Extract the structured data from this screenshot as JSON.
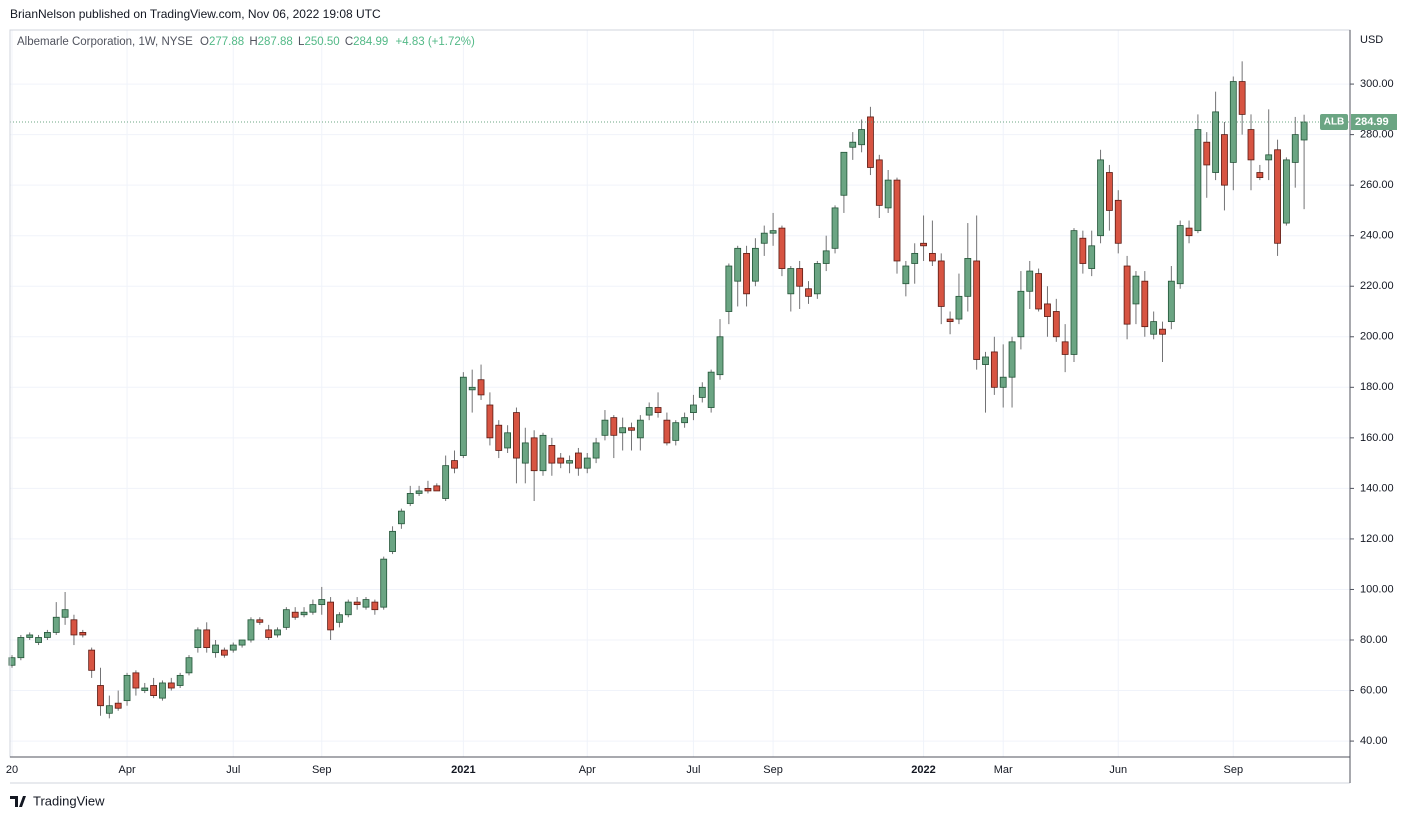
{
  "header": {
    "published": "BrianNelson published on TradingView.com, Nov 06, 2022 19:08 UTC",
    "footer": "TradingView"
  },
  "chart_data": {
    "type": "candlestick",
    "symbol": "Albemarle Corporation, 1W, NYSE",
    "legend_labels": [
      "O",
      "H",
      "L",
      "C"
    ],
    "legend_values": [
      "277.88",
      "287.88",
      "250.50",
      "284.99"
    ],
    "change": "+4.83 (+1.72%)",
    "ticker": "ALB",
    "currency": "USD",
    "up_color": "#6ba583",
    "down_color": "#d75442",
    "grid": true,
    "categories": [
      "20",
      null,
      null,
      null,
      null,
      null,
      null,
      null,
      null,
      null,
      null,
      null,
      null,
      "Apr",
      null,
      null,
      null,
      null,
      null,
      null,
      null,
      null,
      null,
      null,
      null,
      "Jul",
      null,
      null,
      null,
      null,
      null,
      null,
      null,
      null,
      null,
      "Sep",
      null,
      null,
      null,
      null,
      null,
      null,
      null,
      null,
      null,
      null,
      null,
      null,
      null,
      null,
      null,
      "2021",
      null,
      null,
      null,
      null,
      null,
      null,
      null,
      null,
      null,
      null,
      null,
      null,
      null,
      "Apr",
      null,
      null,
      null,
      null,
      null,
      null,
      null,
      null,
      null,
      null,
      null,
      "Jul",
      null,
      null,
      null,
      null,
      null,
      null,
      null,
      null,
      "Sep",
      null,
      null,
      null,
      null,
      null,
      null,
      null,
      null,
      null,
      null,
      null,
      null,
      null,
      null,
      null,
      null,
      "2022",
      null,
      null,
      null,
      null,
      null,
      null,
      null,
      null,
      "Mar",
      null,
      null,
      null,
      null,
      null,
      null,
      null,
      null,
      null,
      null,
      null,
      null,
      "Jun",
      null,
      null,
      null,
      null,
      null,
      null,
      null,
      null,
      null,
      null,
      null,
      null,
      "Sep",
      null,
      null,
      null,
      null,
      null,
      null,
      null,
      null
    ],
    "open": [
      70,
      73,
      81,
      79,
      81,
      83,
      89,
      88,
      83,
      76,
      62,
      51,
      55,
      56,
      67,
      60,
      62,
      57,
      63,
      62,
      67,
      77,
      84,
      75,
      76,
      76,
      78,
      80,
      88,
      84,
      82,
      85,
      91,
      90,
      91,
      94,
      95,
      87,
      90,
      95,
      93,
      95,
      93,
      115,
      126,
      134,
      138,
      140,
      141,
      136,
      151,
      153,
      179,
      183,
      173,
      165,
      156,
      170,
      150,
      160,
      147,
      157,
      152,
      150,
      154,
      148,
      152,
      161,
      168,
      162,
      164,
      160,
      169,
      172,
      167,
      159,
      166,
      170,
      176,
      172,
      185,
      210,
      222,
      233,
      222,
      237,
      241,
      243,
      217,
      227,
      219,
      217,
      229,
      235,
      256,
      275,
      276,
      287,
      270,
      251,
      262,
      221,
      229,
      237,
      233,
      230,
      207,
      207,
      216,
      230,
      189,
      194,
      180,
      184,
      200,
      218,
      225,
      213,
      210,
      198,
      193,
      239,
      227,
      240,
      265,
      254,
      228,
      213,
      222,
      201,
      203,
      206,
      221,
      243,
      242,
      277,
      265,
      280,
      269,
      301,
      282,
      265,
      270,
      274,
      245,
      269,
      277.88
    ],
    "high": [
      74,
      82,
      83,
      82,
      84,
      95,
      99,
      90,
      84,
      77,
      69,
      58,
      60,
      67,
      68,
      63,
      65,
      64,
      65,
      67,
      74,
      85,
      87,
      80,
      77,
      79,
      80,
      89,
      89,
      86,
      85,
      93,
      93,
      93,
      96,
      101,
      97,
      91,
      96,
      97,
      97,
      96,
      113,
      125,
      132,
      141,
      141,
      143,
      142,
      153,
      155,
      186,
      187,
      189,
      178,
      167,
      165,
      172,
      164,
      163,
      162,
      160,
      154,
      153,
      156,
      154,
      160,
      171,
      169,
      168,
      166,
      169,
      174,
      178,
      170,
      167,
      170,
      177,
      182,
      187,
      207,
      229,
      236,
      236,
      239,
      244,
      249,
      244,
      228,
      230,
      222,
      230,
      240,
      252,
      273,
      281,
      286,
      291,
      272,
      266,
      263,
      230,
      237,
      248,
      246,
      233,
      210,
      225,
      245,
      248,
      194,
      200,
      197,
      200,
      226,
      230,
      227,
      220,
      215,
      205,
      243,
      242,
      242,
      274,
      268,
      258,
      232,
      226,
      226,
      210,
      206,
      228,
      246,
      246,
      288,
      281,
      297,
      285,
      303,
      309,
      288,
      268,
      290,
      278,
      271,
      287,
      287.88
    ],
    "low": [
      69,
      72,
      80,
      78,
      80,
      82,
      86,
      78,
      81,
      65,
      50,
      49,
      52,
      54,
      58,
      59,
      57,
      56,
      60,
      61,
      66,
      75,
      75,
      73,
      73,
      75,
      77,
      79,
      86,
      80,
      81,
      84,
      88,
      89,
      90,
      90,
      80,
      85,
      89,
      92,
      92,
      90,
      92,
      114,
      124,
      133,
      137,
      138,
      139,
      135,
      146,
      152,
      170,
      175,
      157,
      152,
      154,
      142,
      142,
      135,
      145,
      145,
      148,
      146,
      145,
      146,
      150,
      159,
      152,
      155,
      155,
      155,
      167,
      168,
      157,
      157,
      164,
      167,
      174,
      170,
      183,
      205,
      212,
      212,
      220,
      232,
      236,
      224,
      210,
      211,
      213,
      215,
      226,
      233,
      249,
      270,
      273,
      264,
      247,
      249,
      225,
      216,
      221,
      230,
      228,
      205,
      201,
      205,
      210,
      187,
      170,
      177,
      172,
      172,
      195,
      211,
      210,
      200,
      198,
      186,
      190,
      225,
      224,
      237,
      242,
      233,
      199,
      205,
      200,
      199,
      190,
      203,
      219,
      237,
      241,
      255,
      262,
      250,
      258,
      280,
      258,
      262,
      262,
      232,
      244,
      259,
      250.5
    ],
    "close": [
      73,
      81,
      82,
      81,
      83,
      89,
      92,
      82,
      82,
      68,
      54,
      54,
      53,
      66,
      61,
      61,
      58,
      63,
      61,
      66,
      73,
      84,
      77,
      78,
      74,
      78,
      80,
      88,
      87,
      81,
      84,
      92,
      89,
      91,
      94,
      96,
      84,
      90,
      95,
      94,
      96,
      92,
      112,
      123,
      131,
      138,
      139,
      139,
      139,
      149,
      148,
      184,
      180,
      177,
      160,
      155,
      162,
      152,
      158,
      147,
      161,
      150,
      150,
      151,
      148,
      152,
      158,
      167,
      161,
      164,
      163,
      167,
      172,
      170,
      158,
      166,
      168,
      173,
      180,
      186,
      200,
      228,
      235,
      217,
      235,
      241,
      242,
      227,
      227,
      220,
      216,
      229,
      234,
      251,
      273,
      277,
      282,
      267,
      252,
      262,
      230,
      228,
      233,
      236,
      230,
      212,
      206,
      216,
      231,
      191,
      192,
      180,
      184,
      198,
      218,
      226,
      211,
      208,
      200,
      193,
      242,
      229,
      236,
      270,
      250,
      237,
      205,
      224,
      204,
      206,
      201,
      222,
      244,
      240,
      282,
      268,
      289,
      260,
      301,
      288,
      270,
      263,
      272,
      237,
      270,
      280,
      284.99
    ],
    "ylim": [
      33.7,
      321.4
    ],
    "yticks": [
      {
        "value": 40,
        "label": "40.00"
      },
      {
        "value": 60,
        "label": "60.00"
      },
      {
        "value": 80,
        "label": "80.00"
      },
      {
        "value": 100,
        "label": "100.00"
      },
      {
        "value": 120,
        "label": "120.00"
      },
      {
        "value": 140,
        "label": "140.00"
      },
      {
        "value": 160,
        "label": "160.00"
      },
      {
        "value": 180,
        "label": "180.00"
      },
      {
        "value": 200,
        "label": "200.00"
      },
      {
        "value": 220,
        "label": "220.00"
      },
      {
        "value": 240,
        "label": "240.00"
      },
      {
        "value": 260,
        "label": "260.00"
      },
      {
        "value": 280,
        "label": "280.00"
      },
      {
        "value": 300,
        "label": "300.00"
      }
    ]
  }
}
